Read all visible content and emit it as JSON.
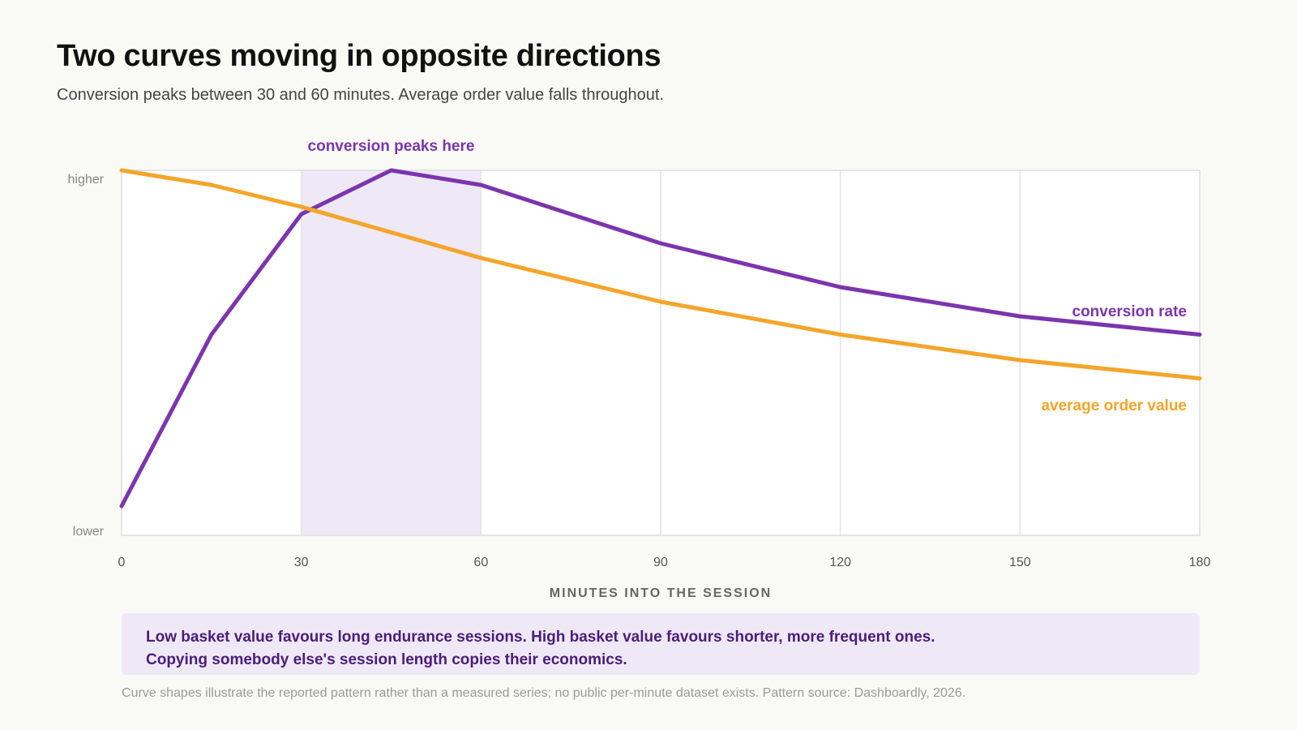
{
  "title": "Two curves moving in opposite directions",
  "subtitle": "Conversion peaks between 30 and 60 minutes. Average order value falls throughout.",
  "chart_data": {
    "type": "line",
    "xlabel": "MINUTES INTO THE SESSION",
    "x_ticks": [
      0,
      30,
      60,
      90,
      120,
      150,
      180
    ],
    "xlim": [
      0,
      180
    ],
    "ylim": [
      0,
      100
    ],
    "y_tick_labels": {
      "higher": "higher",
      "lower": "lower"
    },
    "grid": "vertical",
    "highlight_band": {
      "from": 30,
      "to": 60,
      "label": "conversion peaks here",
      "color": "#efe9f7"
    },
    "series": [
      {
        "name": "conversion rate",
        "color": "#7b35ad",
        "x": [
          0,
          15,
          30,
          45,
          60,
          90,
          120,
          150,
          180
        ],
        "y": [
          8,
          55,
          88,
          100,
          96,
          80,
          68,
          60,
          55
        ]
      },
      {
        "name": "average order value",
        "color": "#f4a52a",
        "x": [
          0,
          15,
          30,
          45,
          60,
          90,
          120,
          150,
          180
        ],
        "y": [
          100,
          96,
          90,
          83,
          76,
          64,
          55,
          48,
          43
        ]
      }
    ]
  },
  "callout": {
    "line1": "Low basket value favours long endurance sessions. High basket value favours shorter, more frequent ones.",
    "line2": "Copying somebody else's session length copies their economics."
  },
  "footnote": "Curve shapes illustrate the reported pattern rather than a measured series; no public per-minute dataset exists. Pattern source: Dashboardly, 2026."
}
